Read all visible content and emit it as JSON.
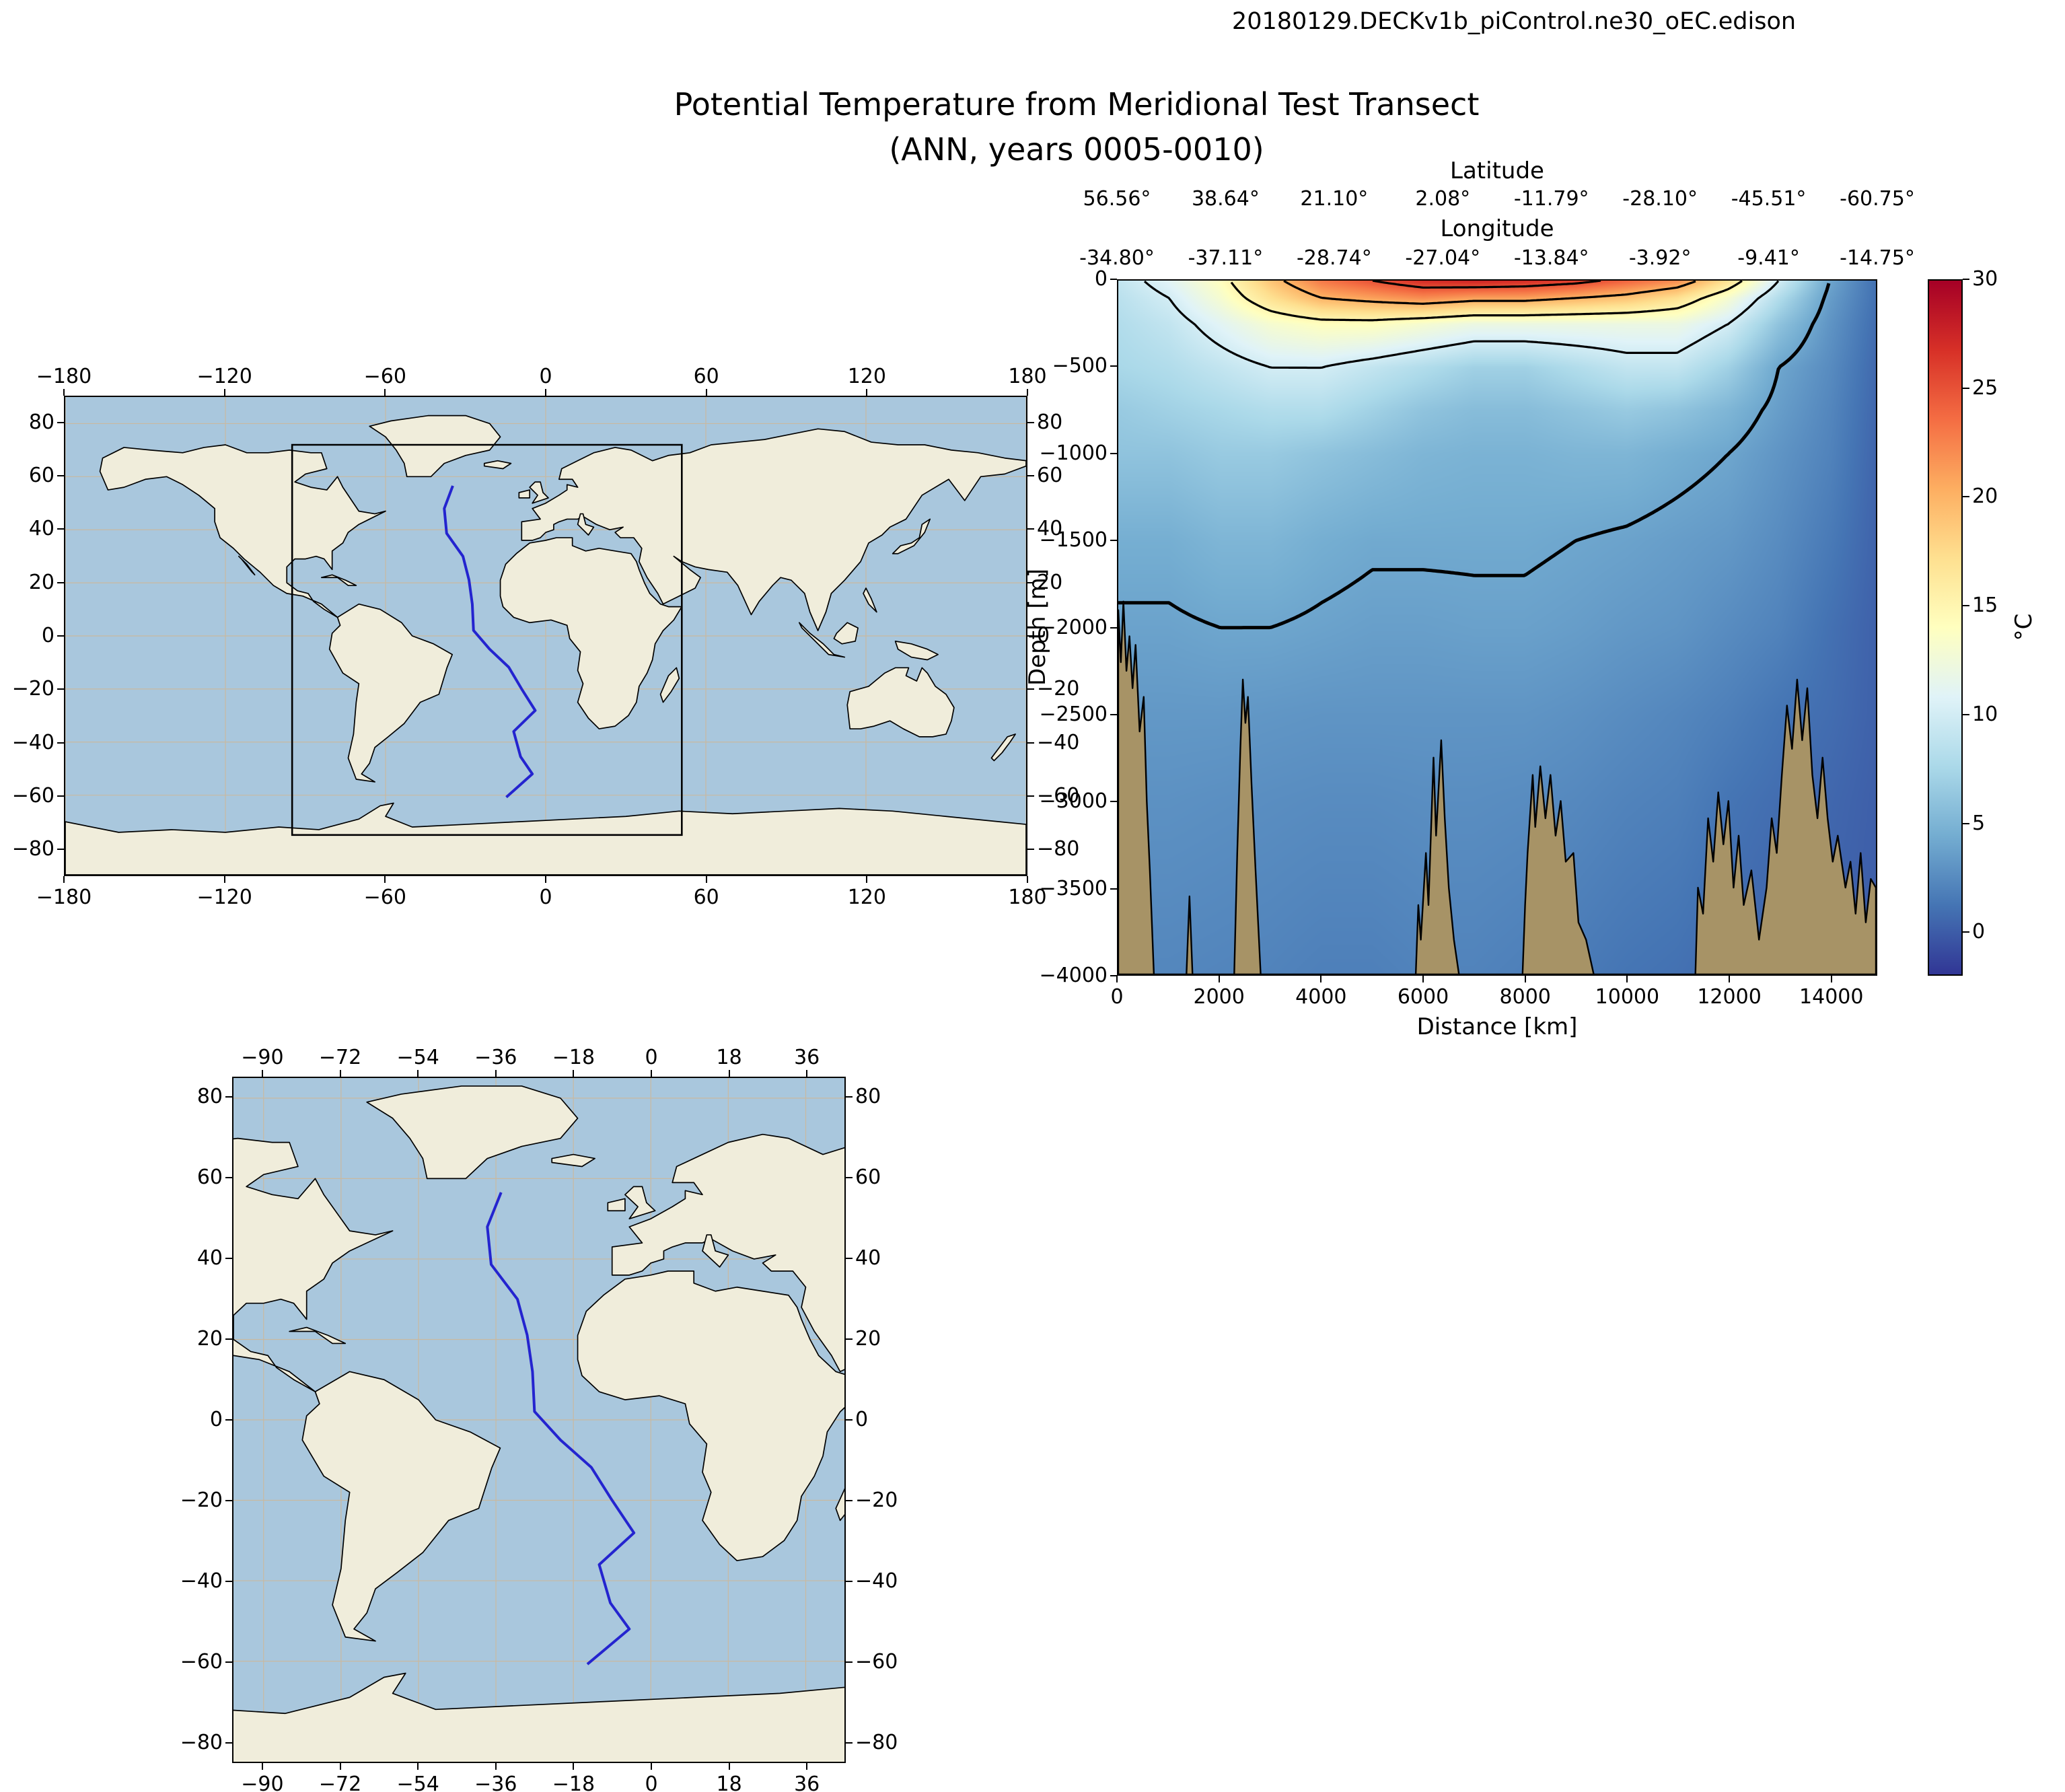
{
  "suptitle": "20180129.DECKv1b_piControl.ne30_oEC.edison",
  "title_line1": "Potential Temperature from Meridional Test Transect",
  "title_line2": "(ANN, years 0005-0010)",
  "colors": {
    "ocean": "#a9c7dd",
    "land": "#f0eddb",
    "coastline": "#000000",
    "graticule": "#c9b9a0",
    "transect_line": "#2424cf",
    "region_box": "#000000",
    "bathymetry": "#a79366",
    "contour": "#000000"
  },
  "chart_data": [
    {
      "type": "map",
      "name": "global-context-map",
      "lon_range": [
        -180,
        180
      ],
      "lat_range": [
        -90,
        90
      ],
      "lon_ticks": [
        -180,
        -120,
        -60,
        0,
        60,
        120,
        180
      ],
      "lat_ticks": [
        80,
        60,
        40,
        20,
        0,
        -20,
        -40,
        -60,
        -80
      ],
      "region_box": {
        "lon_min": -95,
        "lon_max": 51,
        "lat_min": -75,
        "lat_max": 72
      },
      "transect_lon_lat": [
        [
          -34.8,
          56.56
        ],
        [
          -38,
          48
        ],
        [
          -37.11,
          38.64
        ],
        [
          -31,
          30
        ],
        [
          -28.74,
          21.1
        ],
        [
          -27.5,
          12
        ],
        [
          -27.04,
          2.08
        ],
        [
          -21,
          -5
        ],
        [
          -13.84,
          -11.79
        ],
        [
          -9,
          -20
        ],
        [
          -3.92,
          -28.1
        ],
        [
          -12,
          -36
        ],
        [
          -9.41,
          -45.51
        ],
        [
          -5,
          -52
        ],
        [
          -14.75,
          -60.75
        ]
      ]
    },
    {
      "type": "heatmap",
      "name": "temperature-transect",
      "top_axis": {
        "label": "Latitude",
        "tick_labels": [
          "56.56°",
          "38.64°",
          "21.10°",
          "2.08°",
          "-11.79°",
          "-28.10°",
          "-45.51°",
          "-60.75°"
        ]
      },
      "second_axis": {
        "label": "Longitude",
        "tick_labels": [
          "-34.80°",
          "-37.11°",
          "-28.74°",
          "-27.04°",
          "-13.84°",
          "-3.92°",
          "-9.41°",
          "-14.75°"
        ]
      },
      "xlabel": "Distance [km]",
      "ylabel": "Depth [m]",
      "x_ticks": [
        0,
        2000,
        4000,
        6000,
        8000,
        10000,
        12000,
        14000
      ],
      "y_ticks": [
        0,
        -500,
        -1000,
        -1500,
        -2000,
        -2500,
        -3000,
        -3500,
        -4000
      ],
      "x_range_km": [
        0,
        14900
      ],
      "depth_range_m": [
        0,
        -4000
      ],
      "colorbar": {
        "label": "°C",
        "ticks": [
          0,
          5,
          10,
          15,
          20,
          25,
          30
        ],
        "vmin": -2,
        "vmax": 30,
        "colormap": "RdYlBu_r",
        "stops": [
          [
            -2,
            "#313695"
          ],
          [
            1.2,
            "#4575b4"
          ],
          [
            4.4,
            "#74add1"
          ],
          [
            7.6,
            "#abd9e9"
          ],
          [
            10.8,
            "#e0f3f8"
          ],
          [
            14,
            "#ffffbf"
          ],
          [
            17.2,
            "#fee090"
          ],
          [
            20.4,
            "#fdae61"
          ],
          [
            23.6,
            "#f46d43"
          ],
          [
            26.8,
            "#d73027"
          ],
          [
            30,
            "#a50026"
          ]
        ]
      },
      "contour_levels_c": [
        25,
        20,
        15,
        10,
        4
      ],
      "field": {
        "distance_km": [
          0,
          1000,
          2000,
          3000,
          4000,
          5000,
          6000,
          7000,
          8000,
          9000,
          10000,
          11000,
          12000,
          13000,
          14000,
          14900
        ],
        "depth_m": [
          0,
          -100,
          -250,
          -500,
          -750,
          -1000,
          -1500,
          -2000,
          -2500,
          -3000,
          -4000
        ],
        "temperature_c": [
          [
            9,
            11,
            14,
            19,
            23,
            25,
            27,
            27.5,
            27,
            26,
            24,
            22,
            17,
            10,
            4,
            1
          ],
          [
            8.5,
            10,
            13,
            17,
            20,
            21,
            22,
            21,
            21,
            20,
            19,
            17,
            13,
            8,
            3.5,
            1
          ],
          [
            8,
            9,
            11,
            13,
            14,
            14,
            13,
            12,
            12,
            12,
            12,
            12,
            10,
            6,
            3,
            0.8
          ],
          [
            7.5,
            8,
            9,
            10,
            10,
            9,
            8,
            7,
            7,
            8,
            9,
            9,
            7,
            4,
            2.5,
            0.6
          ],
          [
            6.5,
            7,
            7.5,
            8,
            8,
            7,
            6,
            5.5,
            5.5,
            6,
            6.5,
            6,
            5,
            3.5,
            2.2,
            0.5
          ],
          [
            6,
            6,
            6.5,
            6.5,
            6,
            5.5,
            5,
            4.8,
            4.8,
            5,
            5,
            4.5,
            4,
            3,
            2,
            0.4
          ],
          [
            4.5,
            4.5,
            5,
            5,
            4.5,
            4.2,
            4.2,
            4.2,
            4.2,
            4,
            3.8,
            3.5,
            3.2,
            2.5,
            1.5,
            0.3
          ],
          [
            3.8,
            3.8,
            4,
            4,
            3.8,
            3.6,
            3.6,
            3.7,
            3.7,
            3.5,
            3.2,
            3,
            2.5,
            2,
            1,
            0.2
          ],
          [
            3.2,
            3.2,
            3.2,
            3.1,
            3,
            3,
            3,
            3,
            3,
            2.8,
            2.5,
            2.2,
            1.8,
            1.2,
            0.8,
            0.2
          ],
          [
            2.8,
            2.8,
            2.7,
            2.6,
            2.5,
            2.5,
            2.6,
            2.6,
            2.5,
            2.3,
            2,
            1.8,
            1.2,
            0.8,
            0.5,
            0.1
          ],
          [
            2.2,
            2.2,
            2.1,
            2,
            1.8,
            1.8,
            2,
            2,
            1.8,
            1.5,
            1.2,
            1,
            0.6,
            0.3,
            0.2,
            0
          ]
        ]
      },
      "bathymetry_km_m": [
        [
          0,
          -1900
        ],
        [
          50,
          -2200
        ],
        [
          100,
          -1850
        ],
        [
          160,
          -2250
        ],
        [
          220,
          -2050
        ],
        [
          280,
          -2350
        ],
        [
          340,
          -2100
        ],
        [
          420,
          -2600
        ],
        [
          500,
          -2400
        ],
        [
          560,
          -3000
        ],
        [
          620,
          -3400
        ],
        [
          700,
          -4000
        ],
        [
          1340,
          -4000
        ],
        [
          1400,
          -3550
        ],
        [
          1460,
          -4000
        ],
        [
          2280,
          -4000
        ],
        [
          2340,
          -3300
        ],
        [
          2400,
          -2700
        ],
        [
          2450,
          -2300
        ],
        [
          2500,
          -2550
        ],
        [
          2550,
          -2400
        ],
        [
          2620,
          -2900
        ],
        [
          2700,
          -3400
        ],
        [
          2800,
          -4000
        ],
        [
          5850,
          -4000
        ],
        [
          5900,
          -3600
        ],
        [
          5950,
          -3800
        ],
        [
          6050,
          -3300
        ],
        [
          6100,
          -3600
        ],
        [
          6200,
          -2750
        ],
        [
          6250,
          -3200
        ],
        [
          6350,
          -2650
        ],
        [
          6420,
          -3100
        ],
        [
          6500,
          -3500
        ],
        [
          6600,
          -3800
        ],
        [
          6700,
          -4000
        ],
        [
          7950,
          -4000
        ],
        [
          8000,
          -3600
        ],
        [
          8050,
          -3300
        ],
        [
          8150,
          -2850
        ],
        [
          8200,
          -3150
        ],
        [
          8300,
          -2800
        ],
        [
          8400,
          -3100
        ],
        [
          8500,
          -2850
        ],
        [
          8600,
          -3200
        ],
        [
          8700,
          -3000
        ],
        [
          8800,
          -3350
        ],
        [
          8950,
          -3300
        ],
        [
          9050,
          -3700
        ],
        [
          9200,
          -3800
        ],
        [
          9350,
          -4000
        ],
        [
          11350,
          -4000
        ],
        [
          11400,
          -3500
        ],
        [
          11500,
          -3650
        ],
        [
          11600,
          -3100
        ],
        [
          11700,
          -3350
        ],
        [
          11800,
          -2950
        ],
        [
          11900,
          -3250
        ],
        [
          12000,
          -3000
        ],
        [
          12100,
          -3500
        ],
        [
          12200,
          -3200
        ],
        [
          12300,
          -3600
        ],
        [
          12450,
          -3400
        ],
        [
          12600,
          -3800
        ],
        [
          12750,
          -3500
        ],
        [
          12850,
          -3100
        ],
        [
          12950,
          -3300
        ],
        [
          13050,
          -2850
        ],
        [
          13150,
          -2450
        ],
        [
          13250,
          -2700
        ],
        [
          13350,
          -2300
        ],
        [
          13450,
          -2650
        ],
        [
          13550,
          -2350
        ],
        [
          13650,
          -2850
        ],
        [
          13750,
          -3100
        ],
        [
          13850,
          -2750
        ],
        [
          13950,
          -3100
        ],
        [
          14050,
          -3350
        ],
        [
          14150,
          -3200
        ],
        [
          14300,
          -3500
        ],
        [
          14400,
          -3350
        ],
        [
          14500,
          -3650
        ],
        [
          14600,
          -3300
        ],
        [
          14700,
          -3700
        ],
        [
          14800,
          -3450
        ],
        [
          14900,
          -3500
        ]
      ]
    },
    {
      "type": "map",
      "name": "atlantic-detail-map",
      "lon_range": [
        -97,
        45
      ],
      "lat_range": [
        -85,
        85
      ],
      "lon_ticks": [
        -90,
        -72,
        -54,
        -36,
        -18,
        0,
        18,
        36
      ],
      "lat_ticks": [
        80,
        60,
        40,
        20,
        0,
        -20,
        -40,
        -60,
        -80
      ],
      "transect_lon_lat": [
        [
          -34.8,
          56.56
        ],
        [
          -38,
          48
        ],
        [
          -37.11,
          38.64
        ],
        [
          -31,
          30
        ],
        [
          -28.74,
          21.1
        ],
        [
          -27.5,
          12
        ],
        [
          -27.04,
          2.08
        ],
        [
          -21,
          -5
        ],
        [
          -13.84,
          -11.79
        ],
        [
          -9,
          -20
        ],
        [
          -3.92,
          -28.1
        ],
        [
          -12,
          -36
        ],
        [
          -9.41,
          -45.51
        ],
        [
          -5,
          -52
        ],
        [
          -14.75,
          -60.75
        ]
      ]
    }
  ]
}
